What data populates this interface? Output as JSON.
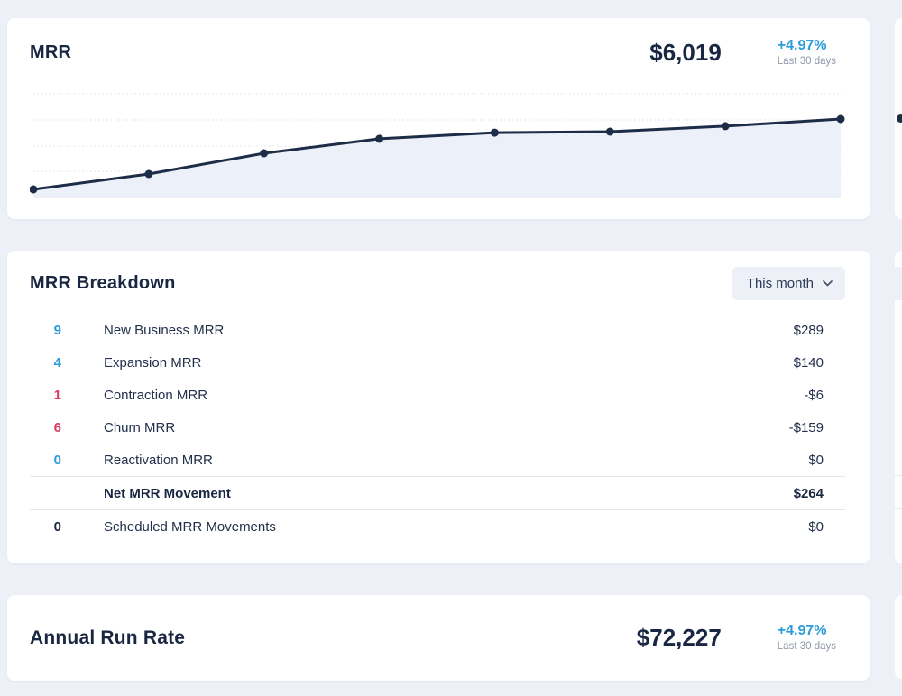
{
  "theme": {
    "background": "#edf0f7",
    "card_background": "#ffffff",
    "navy_text": "#1a2742",
    "accent_blue": "#2d9cdb",
    "accent_pink": "#db3a66",
    "muted_gray": "#8f98a9",
    "divider": "#e2e6ed",
    "chart_line": "#1d2d47",
    "chart_fill": "#ecf0f9",
    "gridline": "#d8dce7"
  },
  "cards": {
    "mrr": {
      "title": "MRR",
      "value": "$6,019",
      "change": "+4.97%",
      "change_period": "Last 30 days"
    },
    "breakdown": {
      "title": "MRR Breakdown",
      "period_selector": {
        "label": "This month",
        "icon": "chevron-down"
      },
      "rows": [
        {
          "count": "9",
          "count_color": "blue",
          "label": "New Business MRR",
          "value": "$289"
        },
        {
          "count": "4",
          "count_color": "blue",
          "label": "Expansion MRR",
          "value": "$140"
        },
        {
          "count": "1",
          "count_color": "pink",
          "label": "Contraction MRR",
          "value": "-$6"
        },
        {
          "count": "6",
          "count_color": "pink",
          "label": "Churn MRR",
          "value": "-$159"
        },
        {
          "count": "0",
          "count_color": "blue",
          "label": "Reactivation MRR",
          "value": "$0"
        },
        {
          "count": "",
          "count_color": "",
          "label": "Net MRR Movement",
          "value": "$264",
          "bold": true
        },
        {
          "count": "0",
          "count_color": "dark",
          "label": "Scheduled MRR Movements",
          "value": "$0"
        }
      ]
    },
    "arr": {
      "title": "Annual Run Rate",
      "value": "$72,227",
      "change": "+4.97%",
      "change_period": "Last 30 days"
    }
  },
  "chart_data": {
    "type": "line",
    "x": [
      1,
      2,
      3,
      4,
      5,
      6,
      7,
      8
    ],
    "values": [
      5734,
      5796,
      5880,
      5939,
      5964,
      5968,
      5990,
      6019
    ],
    "title": "",
    "xlabel": "",
    "ylabel": "",
    "ylim": [
      5700,
      6050
    ],
    "grid": "horizontal-dotted",
    "legend": "none",
    "markers": "filled-circles",
    "area_fill": true
  }
}
